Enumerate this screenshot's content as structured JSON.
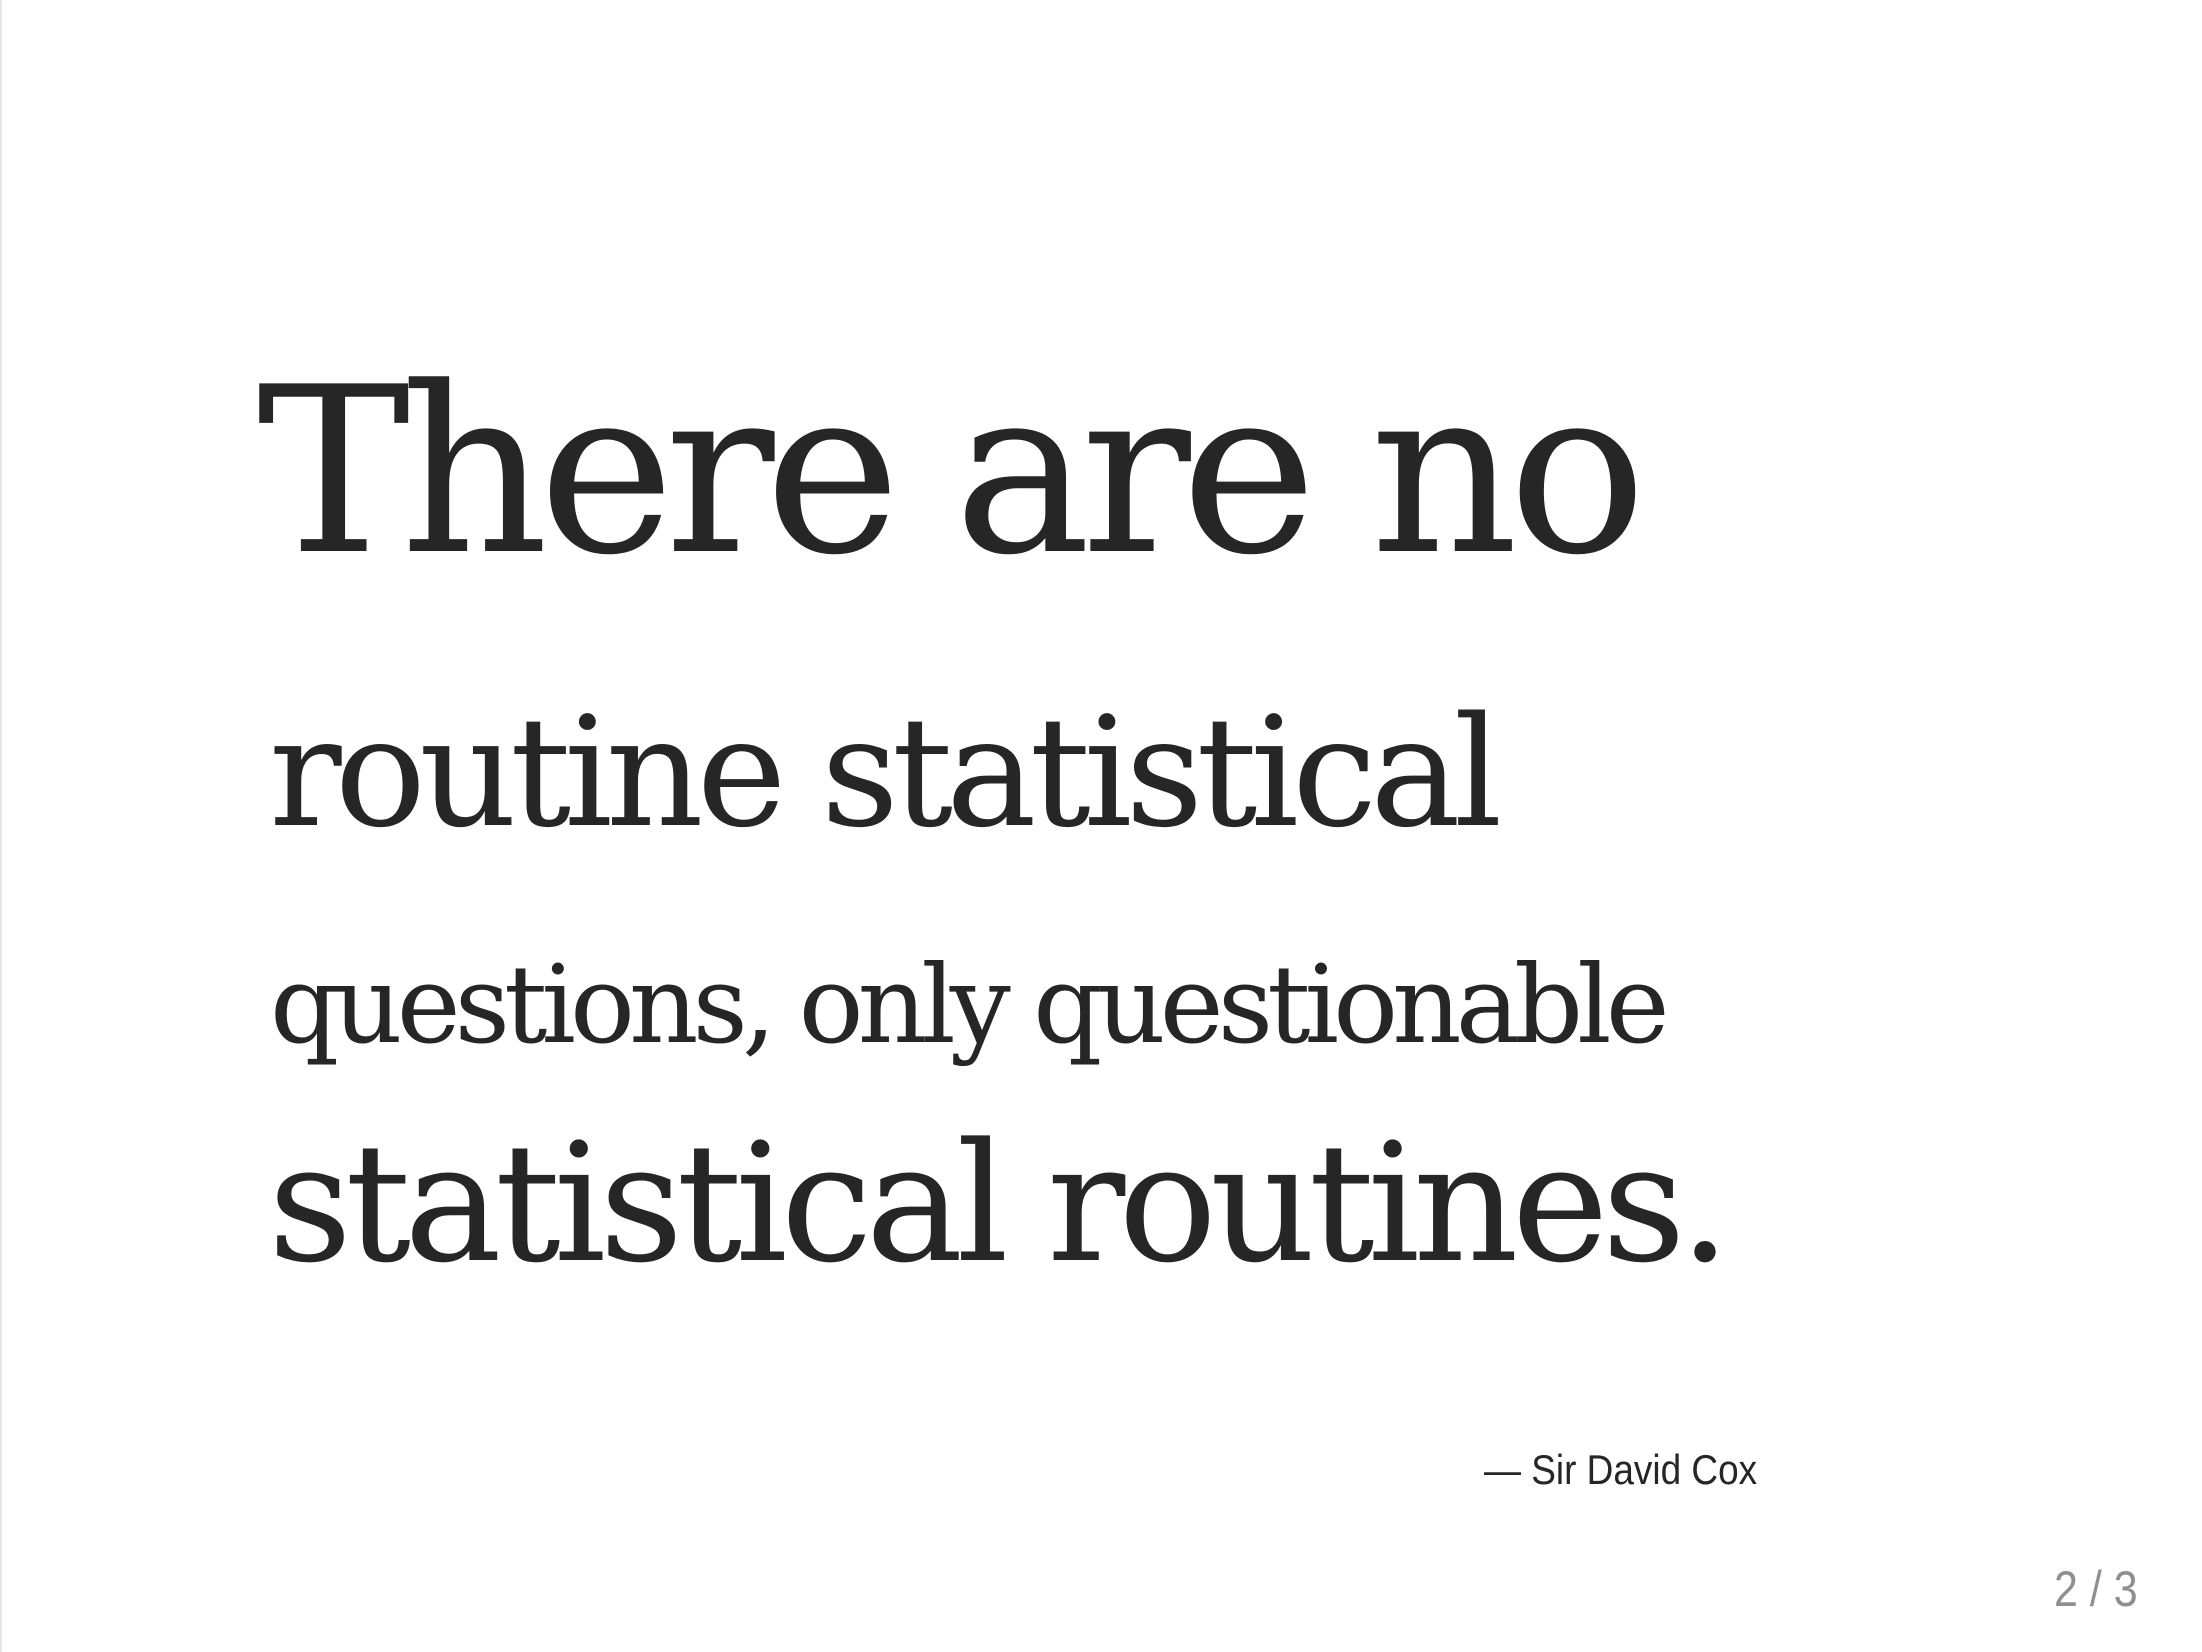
{
  "slide": {
    "quote": {
      "line_1": "There are no",
      "line_2": "routine statistical",
      "line_3": "questions, only questionable",
      "line_4": "statistical routines."
    },
    "attribution": "— Sir David Cox",
    "counter": "2 / 3"
  }
}
